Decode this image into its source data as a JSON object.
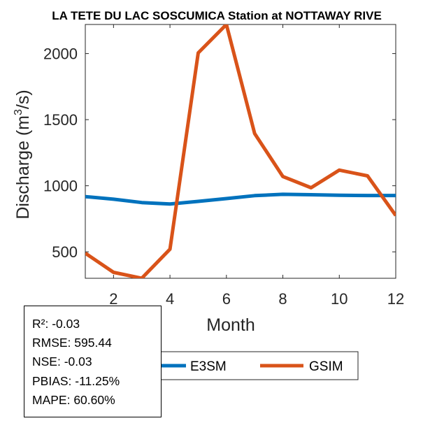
{
  "chart_data": {
    "type": "line",
    "title": "LA TETE DU LAC SOSCUMICA  Station at  NOTTAWAY RIVE",
    "xlabel": "Month",
    "ylabel_main": "Discharge (m",
    "ylabel_sup": "3",
    "ylabel_end": "/s)",
    "xlim": [
      1,
      12
    ],
    "ylim": [
      300,
      2220
    ],
    "xticks": [
      2,
      4,
      6,
      8,
      10,
      12
    ],
    "yticks": [
      500,
      1000,
      1500,
      2000
    ],
    "grid": false,
    "legend_position": "bottom-center",
    "x": [
      1,
      2,
      3,
      4,
      5,
      6,
      7,
      8,
      9,
      10,
      11,
      12
    ],
    "series": [
      {
        "name": "E3SM",
        "color": "#0072BD",
        "values": [
          918,
          898,
          873,
          862,
          882,
          903,
          925,
          935,
          932,
          928,
          926,
          926
        ]
      },
      {
        "name": "GSIM",
        "color": "#D95319",
        "values": [
          490,
          345,
          300,
          520,
          2005,
          2220,
          1395,
          1070,
          985,
          1118,
          1075,
          775
        ]
      }
    ]
  },
  "stats": {
    "r2": "R²: -0.03",
    "rmse": "RMSE: 595.44",
    "nse": "NSE: -0.03",
    "pbias": "PBIAS: -11.25%",
    "mape": "MAPE: 60.60%"
  }
}
